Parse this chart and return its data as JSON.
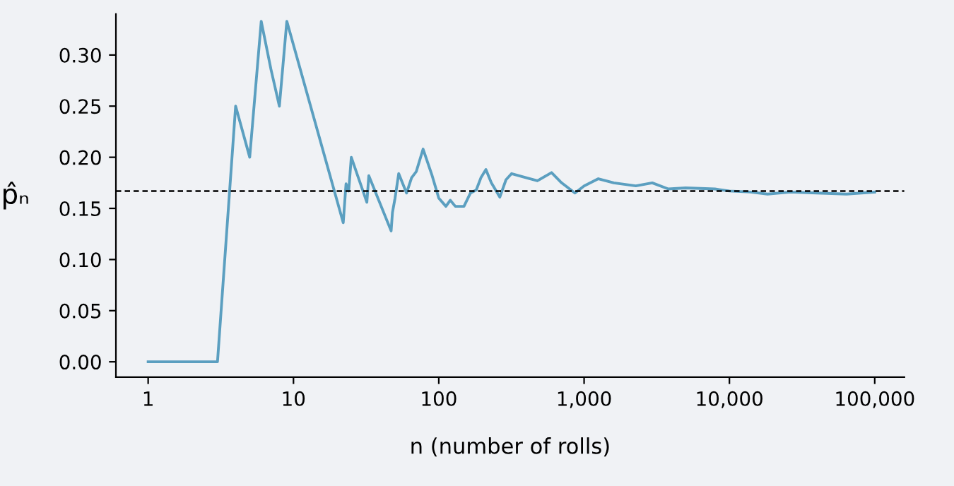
{
  "chart_data": {
    "type": "line",
    "xlabel": "n (number of rolls)",
    "ylabel": "p̂ₙ",
    "log": "x",
    "xlim": [
      0.6,
      160000
    ],
    "ylim": [
      -0.015,
      0.34
    ],
    "xticks": [
      1,
      10,
      100,
      {
        "value": 1000,
        "label": "1,000"
      },
      {
        "value": 10000,
        "label": "10,000"
      },
      {
        "value": 100000,
        "label": "100,000"
      }
    ],
    "yticks": [
      {
        "value": 0,
        "label": "0.00"
      },
      {
        "value": 0.05,
        "label": "0.05"
      },
      {
        "value": 0.1,
        "label": "0.10"
      },
      {
        "value": 0.15,
        "label": "0.15"
      },
      {
        "value": 0.2,
        "label": "0.20"
      },
      {
        "value": 0.25,
        "label": "0.25"
      },
      {
        "value": 0.3,
        "label": "0.30"
      }
    ],
    "grid": false,
    "legend": false,
    "marker": "none",
    "line_style": "solid",
    "ref_lines": [
      {
        "axis": "y",
        "value": 0.167,
        "color": "#000000",
        "line_style": "dashed"
      }
    ],
    "series": [
      {
        "color": "#5b9fc0",
        "x": [
          1,
          2,
          3,
          4,
          5,
          6,
          7,
          8,
          9,
          22,
          23,
          24,
          25,
          32,
          33,
          47,
          48,
          50,
          53,
          60,
          65,
          70,
          78,
          90,
          100,
          112,
          120,
          130,
          149,
          165,
          181,
          195,
          211,
          230,
          263,
          290,
          317,
          400,
          477,
          597,
          700,
          865,
          1000,
          1253,
          1600,
          2270,
          2945,
          3800,
          5000,
          7950,
          10000,
          14000,
          18300,
          26300,
          40000,
          64000,
          100000
        ],
        "values": [
          0,
          0,
          0,
          0.25,
          0.2,
          0.333,
          0.286,
          0.25,
          0.333,
          0.136,
          0.174,
          0.167,
          0.2,
          0.156,
          0.182,
          0.128,
          0.146,
          0.16,
          0.184,
          0.165,
          0.18,
          0.186,
          0.208,
          0.182,
          0.16,
          0.152,
          0.158,
          0.152,
          0.152,
          0.165,
          0.168,
          0.18,
          0.188,
          0.175,
          0.161,
          0.178,
          0.184,
          0.18,
          0.177,
          0.185,
          0.175,
          0.165,
          0.172,
          0.179,
          0.175,
          0.172,
          0.175,
          0.169,
          0.17,
          0.169,
          0.167,
          0.166,
          0.164,
          0.166,
          0.165,
          0.164,
          0.166
        ]
      }
    ]
  }
}
